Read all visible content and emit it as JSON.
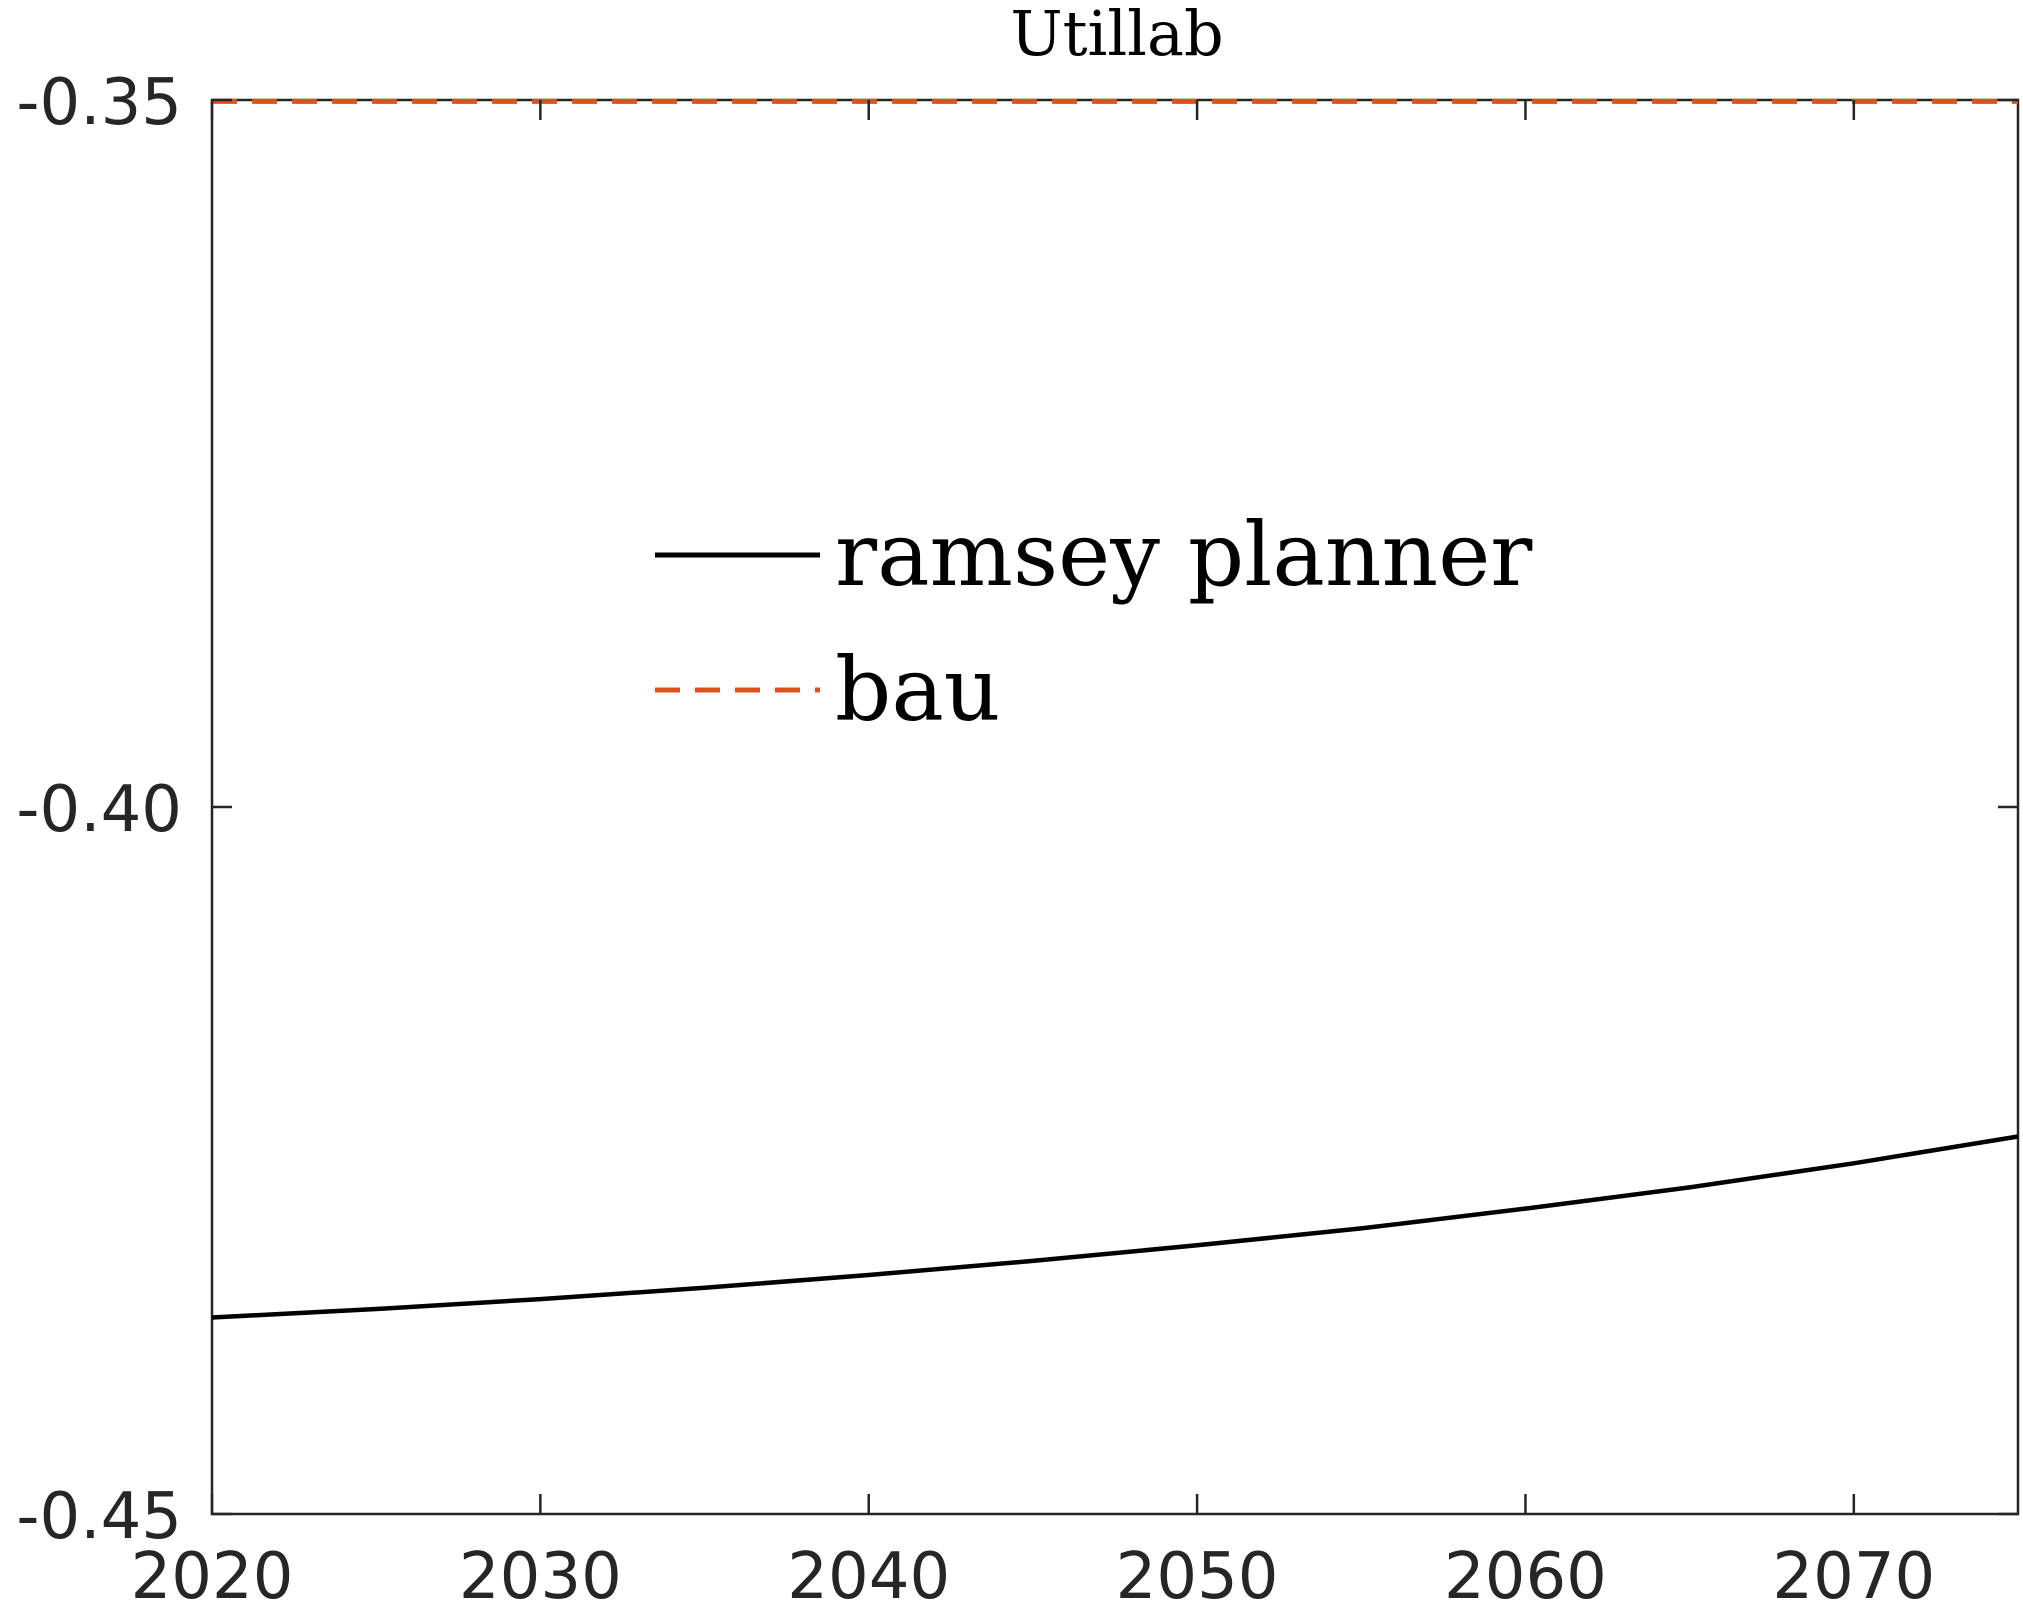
{
  "chart_data": {
    "type": "line",
    "title": "Utillab",
    "xlabel": "",
    "ylabel": "",
    "xlim": [
      2020,
      2075
    ],
    "ylim": [
      -0.45,
      -0.35
    ],
    "xticks": [
      2020,
      2030,
      2040,
      2050,
      2060,
      2070
    ],
    "xtick_labels": [
      "2020",
      "2030",
      "2040",
      "2050",
      "2060",
      "2070"
    ],
    "yticks": [
      -0.45,
      -0.4,
      -0.35
    ],
    "ytick_labels": [
      "-0.45",
      "-0.40",
      "-0.35"
    ],
    "grid": false,
    "legend_position": "center-left",
    "series": [
      {
        "name": "ramsey planner",
        "color": "#000000",
        "style": "solid",
        "x": [
          2020,
          2025,
          2030,
          2035,
          2040,
          2045,
          2050,
          2055,
          2060,
          2065,
          2070,
          2075
        ],
        "y": [
          -0.4361,
          -0.4355,
          -0.4348,
          -0.434,
          -0.4331,
          -0.4321,
          -0.431,
          -0.4298,
          -0.4284,
          -0.4269,
          -0.4252,
          -0.4233
        ]
      },
      {
        "name": "bau",
        "color": "#D95319",
        "style": "dashed",
        "x": [
          2020,
          2075
        ],
        "y": [
          -0.3501,
          -0.3501
        ]
      }
    ]
  }
}
